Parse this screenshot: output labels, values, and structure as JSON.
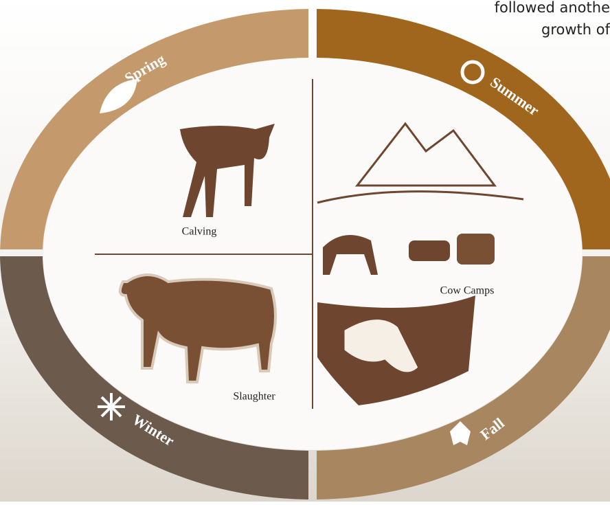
{
  "header_text": {
    "lines": [
      "followed anothe",
      "growth of"
    ]
  },
  "seasons": [
    {
      "name": "Spring"
    },
    {
      "name": "Summer"
    },
    {
      "name": "Fall"
    },
    {
      "name": "Winter"
    }
  ],
  "activities": [
    {
      "label": "Calving"
    },
    {
      "label": "Cow Camps"
    },
    {
      "label": "Slaughter"
    }
  ]
}
